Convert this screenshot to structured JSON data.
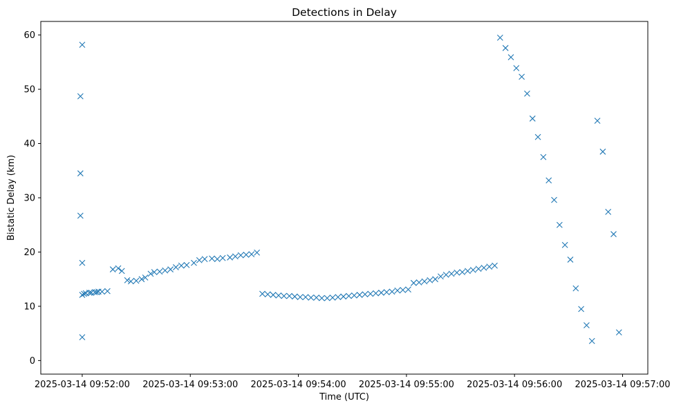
{
  "chart_data": {
    "type": "scatter",
    "title": "Detections in Delay",
    "xlabel": "Time (UTC)",
    "ylabel": "Bistatic Delay (km)",
    "x_type": "datetime",
    "xlim": [
      "2025-03-14 09:51:37",
      "2025-03-14 09:57:14"
    ],
    "ylim": [
      -2.5,
      62.5
    ],
    "x_ticks": [
      "2025-03-14 09:52:00",
      "2025-03-14 09:53:00",
      "2025-03-14 09:54:00",
      "2025-03-14 09:55:00",
      "2025-03-14 09:56:00",
      "2025-03-14 09:57:00"
    ],
    "y_ticks": [
      0,
      10,
      20,
      30,
      40,
      50,
      60
    ],
    "marker": "x",
    "color": "#1f77b4",
    "grid": false,
    "legend": "none",
    "series": [
      {
        "x": [
          "2025-03-14 09:51:59",
          "2025-03-14 09:51:59",
          "2025-03-14 09:52:00",
          "2025-03-14 09:52:00",
          "2025-03-14 09:51:59",
          "2025-03-14 09:52:00",
          "2025-03-14 09:52:00",
          "2025-03-14 09:52:01",
          "2025-03-14 09:52:02",
          "2025-03-14 09:52:04",
          "2025-03-14 09:52:05",
          "2025-03-14 09:52:07",
          "2025-03-14 09:52:08",
          "2025-03-14 09:52:09",
          "2025-03-14 09:52:11",
          "2025-03-14 09:52:14",
          "2025-03-14 09:52:17",
          "2025-03-14 09:52:20",
          "2025-03-14 09:52:22",
          "2025-03-14 09:52:25",
          "2025-03-14 09:52:27",
          "2025-03-14 09:52:30",
          "2025-03-14 09:52:33",
          "2025-03-14 09:52:35",
          "2025-03-14 09:52:38",
          "2025-03-14 09:52:40",
          "2025-03-14 09:52:43",
          "2025-03-14 09:52:46",
          "2025-03-14 09:52:49",
          "2025-03-14 09:52:52",
          "2025-03-14 09:52:55",
          "2025-03-14 09:52:58",
          "2025-03-14 09:53:02",
          "2025-03-14 09:53:05",
          "2025-03-14 09:53:08",
          "2025-03-14 09:53:12",
          "2025-03-14 09:53:15",
          "2025-03-14 09:53:18",
          "2025-03-14 09:53:22",
          "2025-03-14 09:53:25",
          "2025-03-14 09:53:28",
          "2025-03-14 09:53:31",
          "2025-03-14 09:53:34",
          "2025-03-14 09:53:37",
          "2025-03-14 09:53:40",
          "2025-03-14 09:53:43",
          "2025-03-14 09:53:46",
          "2025-03-14 09:53:49",
          "2025-03-14 09:53:52",
          "2025-03-14 09:53:55",
          "2025-03-14 09:53:58",
          "2025-03-14 09:54:01",
          "2025-03-14 09:54:04",
          "2025-03-14 09:54:07",
          "2025-03-14 09:54:10",
          "2025-03-14 09:54:13",
          "2025-03-14 09:54:16",
          "2025-03-14 09:54:19",
          "2025-03-14 09:54:22",
          "2025-03-14 09:54:25",
          "2025-03-14 09:54:28",
          "2025-03-14 09:54:31",
          "2025-03-14 09:54:34",
          "2025-03-14 09:54:37",
          "2025-03-14 09:54:40",
          "2025-03-14 09:54:43",
          "2025-03-14 09:54:46",
          "2025-03-14 09:54:49",
          "2025-03-14 09:54:52",
          "2025-03-14 09:54:55",
          "2025-03-14 09:54:58",
          "2025-03-14 09:55:01",
          "2025-03-14 09:55:04",
          "2025-03-14 09:55:07",
          "2025-03-14 09:55:10",
          "2025-03-14 09:55:13",
          "2025-03-14 09:55:16",
          "2025-03-14 09:55:19",
          "2025-03-14 09:55:22",
          "2025-03-14 09:55:25",
          "2025-03-14 09:55:28",
          "2025-03-14 09:55:31",
          "2025-03-14 09:55:34",
          "2025-03-14 09:55:37",
          "2025-03-14 09:55:40",
          "2025-03-14 09:55:43",
          "2025-03-14 09:55:46",
          "2025-03-14 09:55:49",
          "2025-03-14 09:55:52",
          "2025-03-14 09:55:55",
          "2025-03-14 09:55:58",
          "2025-03-14 09:56:01",
          "2025-03-14 09:56:04",
          "2025-03-14 09:56:07",
          "2025-03-14 09:56:10",
          "2025-03-14 09:56:13",
          "2025-03-14 09:56:16",
          "2025-03-14 09:56:19",
          "2025-03-14 09:56:22",
          "2025-03-14 09:56:25",
          "2025-03-14 09:56:28",
          "2025-03-14 09:56:31",
          "2025-03-14 09:56:34",
          "2025-03-14 09:56:37",
          "2025-03-14 09:56:40",
          "2025-03-14 09:56:43",
          "2025-03-14 09:56:46",
          "2025-03-14 09:56:49",
          "2025-03-14 09:56:52",
          "2025-03-14 09:56:55",
          "2025-03-14 09:56:58"
        ],
        "y": [
          48.7,
          34.5,
          18.0,
          12.1,
          26.7,
          4.3,
          58.2,
          12.3,
          12.4,
          12.5,
          12.5,
          12.6,
          12.6,
          12.7,
          12.7,
          12.8,
          16.8,
          17.0,
          16.5,
          14.8,
          14.6,
          14.7,
          15.0,
          15.3,
          16.0,
          16.3,
          16.4,
          16.6,
          16.8,
          17.2,
          17.5,
          17.6,
          18.0,
          18.5,
          18.7,
          18.8,
          18.7,
          18.9,
          19.0,
          19.2,
          19.4,
          19.5,
          19.6,
          19.9,
          12.3,
          12.2,
          12.1,
          12.0,
          11.9,
          11.9,
          11.8,
          11.7,
          11.7,
          11.6,
          11.6,
          11.5,
          11.5,
          11.6,
          11.7,
          11.8,
          11.9,
          12.0,
          12.1,
          12.2,
          12.3,
          12.4,
          12.5,
          12.6,
          12.7,
          12.9,
          13.0,
          13.1,
          14.3,
          14.4,
          14.6,
          14.8,
          15.0,
          15.5,
          15.8,
          16.0,
          16.2,
          16.3,
          16.5,
          16.7,
          16.9,
          17.1,
          17.3,
          17.5,
          59.5,
          57.6,
          55.9,
          53.9,
          52.3,
          49.2,
          44.6,
          41.2,
          37.5,
          33.2,
          29.6,
          25.0,
          21.3,
          18.6,
          13.3,
          9.5,
          6.5,
          3.6,
          44.2,
          38.5,
          27.4,
          23.3,
          5.2
        ]
      }
    ]
  }
}
